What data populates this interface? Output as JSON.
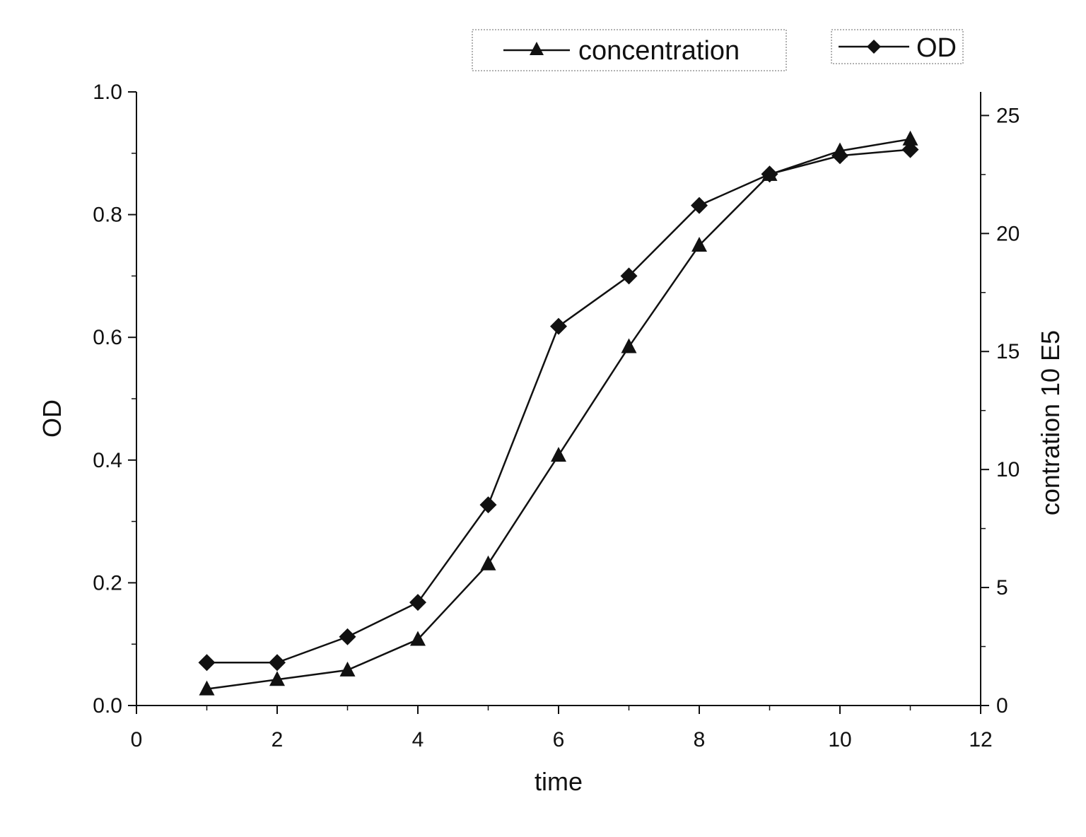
{
  "chart_data": {
    "type": "line",
    "title": "",
    "xlabel": "time",
    "ylabel_left": "OD",
    "ylabel_right": "contration 10 E5",
    "xlim": [
      0,
      12
    ],
    "ylim_left": [
      0.0,
      1.0
    ],
    "ylim_right": [
      0,
      26
    ],
    "x_ticks": [
      "0",
      "2",
      "4",
      "6",
      "8",
      "10",
      "12"
    ],
    "y_left_ticks": [
      "0.0",
      "0.2",
      "0.4",
      "0.6",
      "0.8",
      "1.0"
    ],
    "y_right_ticks": [
      "0",
      "5",
      "10",
      "15",
      "20",
      "25"
    ],
    "grid": false,
    "legend": {
      "placement": "top",
      "entries": [
        {
          "name": "concentration",
          "marker": "triangle"
        },
        {
          "name": "OD",
          "marker": "diamond"
        }
      ]
    },
    "x": [
      1,
      2,
      3,
      4,
      5,
      6,
      7,
      8,
      9,
      10,
      11
    ],
    "series": [
      {
        "name": "OD",
        "axis": "left",
        "marker": "diamond",
        "values": [
          0.07,
          0.07,
          0.112,
          0.168,
          0.327,
          0.618,
          0.7,
          0.815,
          0.866,
          0.896,
          0.906
        ]
      },
      {
        "name": "concentration",
        "axis": "right",
        "marker": "triangle",
        "values": [
          0.7,
          1.1,
          1.5,
          2.8,
          6.0,
          10.6,
          15.2,
          19.5,
          22.5,
          23.5,
          24.0
        ]
      }
    ],
    "colors": {
      "line": "#111111",
      "marker": "#111111",
      "legend_border": "#999999"
    }
  }
}
